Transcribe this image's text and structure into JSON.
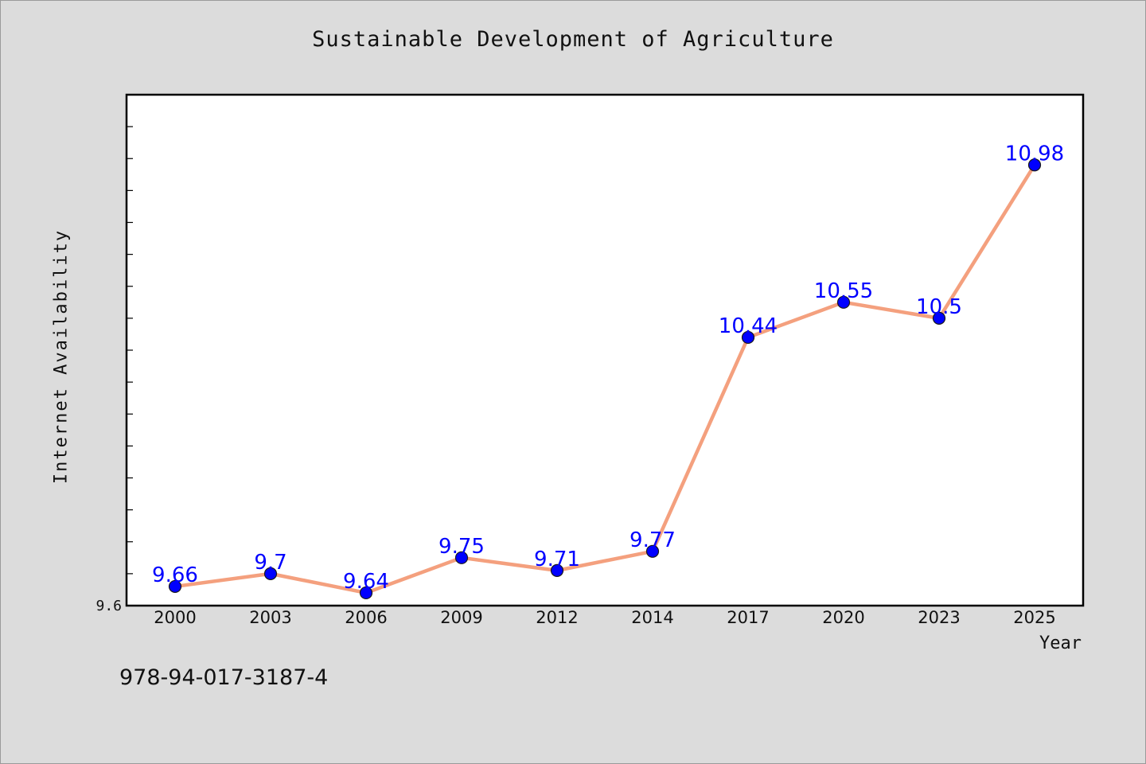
{
  "chart_data": {
    "type": "line",
    "title": "Sustainable Development of Agriculture",
    "xlabel": "Year",
    "ylabel": "Internet Availability",
    "categories": [
      "2000",
      "2003",
      "2006",
      "2009",
      "2012",
      "2014",
      "2017",
      "2020",
      "2023",
      "2025"
    ],
    "series": [
      {
        "values": [
          9.66,
          9.7,
          9.64,
          9.75,
          9.71,
          9.77,
          10.44,
          10.55,
          10.5,
          10.98
        ],
        "data_labels": [
          "9.66",
          "9.7",
          "9.64",
          "9.75",
          "9.71",
          "9.77",
          "10.44",
          "10.55",
          "10.5",
          "10.98"
        ]
      }
    ],
    "y_tick_labels": [
      "9.6"
    ],
    "ylim": [
      9.6,
      11.2
    ],
    "grid": false,
    "legend": "none",
    "colors": {
      "line": "#f4a07e",
      "marker_fill": "#0000ff",
      "marker_stroke": "#1a1a1a",
      "data_label": "#0000ff",
      "plot_background": "#ffffff",
      "figure_background": "#dcdcdc"
    }
  },
  "footer": {
    "isbn": "978-94-017-3187-4"
  }
}
